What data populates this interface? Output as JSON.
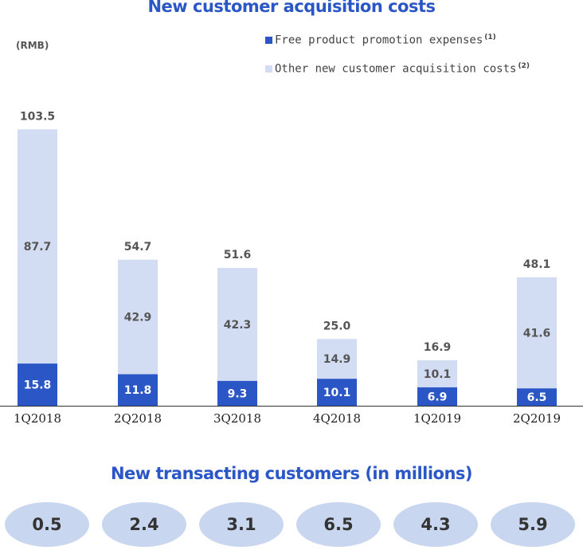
{
  "chart_data": {
    "type": "bar",
    "stacked": true,
    "title": "New customer acquisition costs",
    "ylabel": "(RMB)",
    "categories": [
      "1Q2018",
      "2Q2018",
      "3Q2018",
      "4Q2018",
      "1Q2019",
      "2Q2019"
    ],
    "series": [
      {
        "name": "Free product promotion expenses",
        "note": "(1)",
        "color": "#2a56c6",
        "values": [
          15.8,
          11.8,
          9.3,
          10.1,
          6.9,
          6.5
        ]
      },
      {
        "name": "Other new customer acquisition costs",
        "note": "(2)",
        "color": "#d2dcf2",
        "values": [
          87.7,
          42.9,
          42.3,
          14.9,
          10.1,
          41.6
        ]
      }
    ],
    "totals": [
      "103.5",
      "54.7",
      "51.6",
      "25.0",
      "16.9",
      "48.1"
    ],
    "bottom_labels": [
      "15.8",
      "11.8",
      "9.3",
      "10.1",
      "6.9",
      "6.5"
    ],
    "top_labels": [
      "87.7",
      "42.9",
      "42.3",
      "14.9",
      "10.1",
      "41.6"
    ],
    "legend_position": "top-right",
    "grid": false
  },
  "subtitle": "New transacting customers (in millions)",
  "customers": [
    "0.5",
    "2.4",
    "3.1",
    "6.5",
    "4.3",
    "5.9"
  ]
}
